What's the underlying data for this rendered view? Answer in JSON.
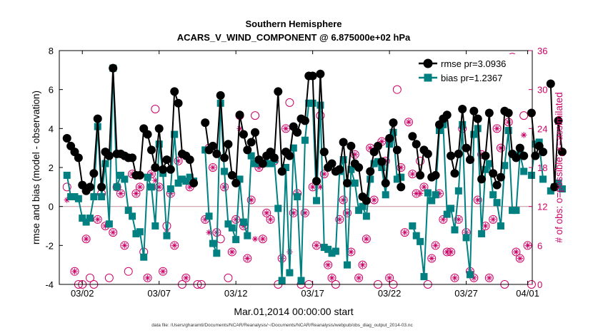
{
  "chart_data": {
    "type": "line",
    "title_line1": "Southern Hemisphere",
    "title_line2": "ACARS_V_WIND_COMPONENT @ 6.875000e+02 hPa",
    "xlabel": "Mar.01,2014 00:00:00 start",
    "ylabel_left": "rmse and bias (model - observation)",
    "ylabel_right": "# of obs: o=possible; ×=assimilated",
    "footnote": "data file: /Users/gharamti/Documents/NCAR/Reanalysis/~/Documents/NCAR/Reanalysis/webpub/obs_diag_output_2014-03.nc",
    "xlim": [
      0.5,
      31.3
    ],
    "ylim_left": [
      -4,
      8
    ],
    "ylim_right": [
      0,
      36
    ],
    "x_ticks": [
      {
        "value": 2,
        "label": "03/02"
      },
      {
        "value": 7,
        "label": "03/07"
      },
      {
        "value": 12,
        "label": "03/12"
      },
      {
        "value": 17,
        "label": "03/17"
      },
      {
        "value": 22,
        "label": "03/22"
      },
      {
        "value": 27,
        "label": "03/27"
      },
      {
        "value": 31,
        "label": "04/01"
      }
    ],
    "y_ticks_left": [
      -4,
      -2,
      0,
      2,
      4,
      6,
      8
    ],
    "y_ticks_right": [
      0,
      6,
      12,
      18,
      24,
      30,
      36
    ],
    "colors": {
      "rmse": "#000000",
      "bias": "#008080",
      "obs": "#cc0066",
      "zero_line": "#c8a0a8"
    },
    "series": [
      {
        "name": "rmse pr=3.0936",
        "values": [
          3.5,
          3.1,
          2.8,
          2.5,
          1.1,
          0.8,
          1.0,
          1.7,
          4.5,
          1.0,
          2.8,
          2.6,
          7.1,
          2.7,
          2.7,
          2.6,
          2.5,
          2.5,
          1.6,
          1.6,
          4.0,
          3.7,
          2.9,
          2.0,
          4.0,
          1.9,
          2.4,
          1.9,
          5.9,
          5.3,
          2.7,
          2.6,
          2.4,
          1.2,
          null,
          null,
          4.3,
          2.9,
          3.1,
          2.7,
          5.7,
          2.5,
          3.2,
          1.6,
          1.2,
          4.7,
          3.7,
          2.9,
          3.3,
          3.8,
          2.4,
          2.2,
          2.6,
          2.8,
          2.5,
          5.9,
          1.8,
          2.8,
          2.6,
          4.1,
          3.8,
          4.5,
          4.4,
          6.7,
          6.7,
          1.3,
          6.8,
          2.8,
          2.0,
          2.2,
          1.8,
          1.9,
          3.3,
          1.2,
          3.1,
          2.2,
          2.0,
          0.5,
          0.3,
          1.8,
          2.8,
          3.1,
          2.3,
          1.2,
          3.5,
          4.3,
          2.9,
          1.0,
          null,
          null,
          3.6,
          3.2,
          1.6,
          2.9,
          2.7,
          1.5,
          1.6,
          4.2,
          4.5,
          4.7,
          2.6,
          1.7,
          2.7,
          5.0,
          3.0,
          2.4,
          4.9,
          4.5,
          1.4,
          2.6,
          4.8,
          1.7,
          1.1,
          1.5,
          4.9,
          4.8,
          2.7,
          2.5,
          3.0,
          2.6,
          null,
          4.8,
          2.6,
          3.1,
          2.8,
          null,
          6.3,
          1.0,
          4.4,
          2.8
        ],
        "x_start": 1.0,
        "x_step": 0.25
      },
      {
        "name": "bias pr=1.2367",
        "values": [
          1.6,
          0.5,
          0.5,
          0.4,
          -0.6,
          -0.8,
          -0.6,
          0.5,
          4.1,
          0.5,
          2.2,
          -0.9,
          7.1,
          1.0,
          1.6,
          1.4,
          -0.2,
          -0.5,
          -1.4,
          -1.3,
          -2.6,
          1.5,
          1.0,
          -1.0,
          3.2,
          1.7,
          -1.5,
          0.9,
          3.7,
          1.2,
          1.4,
          1.3,
          1.5,
          1.3,
          null,
          null,
          2.9,
          -0.5,
          -1.9,
          -2.4,
          5.3,
          1.8,
          -0.9,
          -1.1,
          -1.7,
          1.4,
          -0.8,
          -1.5,
          2.6,
          2.2,
          2.3,
          2.2,
          2.2,
          2.2,
          2.4,
          -0.1,
          -3.8,
          2.0,
          -3.4,
          3.0,
          0.5,
          -3.8,
          3.4,
          5.3,
          5.3,
          0.3,
          5.2,
          -2.1,
          -2.2,
          -2.4,
          -2.3,
          1.8,
          2.4,
          -3.0,
          1.9,
          1.2,
          -0.2,
          0.0,
          -0.5,
          1.4,
          2.2,
          2.3,
          2.0,
          0.6,
          3.2,
          3.8,
          1.4,
          1.5,
          null,
          null,
          -1.0,
          -1.5,
          -1.8,
          -3.6,
          0.7,
          0.3,
          0.6,
          3.9,
          4.2,
          -0.4,
          -0.1,
          -1.2,
          0.8,
          4.2,
          -1.6,
          -3.5,
          3.7,
          4.0,
          -1.4,
          1.9,
          2.2,
          0.6,
          0.2,
          -1.0,
          2.1,
          3.9,
          -0.2,
          -0.2,
          2.7,
          1.8,
          null,
          1.6,
          3.2,
          3.3,
          1.4,
          null,
          0.8,
          1.0,
          1.2,
          0.9
        ]
      }
    ],
    "obs_possible": [
      [
        1.0,
        15.0
      ],
      [
        1.5,
        2.0
      ],
      [
        1.75,
        0.0
      ],
      [
        2.0,
        0.0
      ],
      [
        2.25,
        7.0
      ],
      [
        2.5,
        1.0
      ],
      [
        2.75,
        0.0
      ],
      [
        3.0,
        10.0
      ],
      [
        3.25,
        14.0
      ],
      [
        3.5,
        9.0
      ],
      [
        3.75,
        1.0
      ],
      [
        4.0,
        8.0
      ],
      [
        4.25,
        15.0
      ],
      [
        4.5,
        14.0
      ],
      [
        4.75,
        6.0
      ],
      [
        5.0,
        2.0
      ],
      [
        5.25,
        17.0
      ],
      [
        5.5,
        14.0
      ],
      [
        5.75,
        15.0
      ],
      [
        6.0,
        5.0
      ],
      [
        6.25,
        1.0
      ],
      [
        6.5,
        17.0
      ],
      [
        6.75,
        27.0
      ],
      [
        7.0,
        15.0
      ],
      [
        7.25,
        2.0
      ],
      [
        7.5,
        9.0
      ],
      [
        7.75,
        14.0
      ],
      [
        8.0,
        6.0
      ],
      [
        8.25,
        19.0
      ],
      [
        8.5,
        0.0
      ],
      [
        8.75,
        1.0
      ],
      [
        9.0,
        15.0
      ],
      [
        9.5,
        0.0
      ],
      [
        9.75,
        0.0
      ],
      [
        10.0,
        10.0
      ],
      [
        10.25,
        21.0
      ],
      [
        10.5,
        18.0
      ],
      [
        10.75,
        8.0
      ],
      [
        11.0,
        7.0
      ],
      [
        11.25,
        15.0
      ],
      [
        11.5,
        1.0
      ],
      [
        11.75,
        5.0
      ],
      [
        12.0,
        10.0
      ],
      [
        12.25,
        26.0
      ],
      [
        12.5,
        9.0
      ],
      [
        12.75,
        4.0
      ],
      [
        13.0,
        13.0
      ],
      [
        13.25,
        26.0
      ],
      [
        13.5,
        18.0
      ],
      [
        13.75,
        7.0
      ],
      [
        14.0,
        11.0
      ],
      [
        14.25,
        10.0
      ],
      [
        14.5,
        19.0
      ],
      [
        14.75,
        0.0
      ],
      [
        15.0,
        4.0
      ],
      [
        15.25,
        24.0
      ],
      [
        15.5,
        28.0
      ],
      [
        15.75,
        11.0
      ],
      [
        16.0,
        14.0
      ],
      [
        16.25,
        0.0
      ],
      [
        16.5,
        11.0
      ],
      [
        16.75,
        0.0
      ],
      [
        17.0,
        15.0
      ],
      [
        17.25,
        6.0
      ],
      [
        17.5,
        26.0
      ],
      [
        17.75,
        17.0
      ],
      [
        18.0,
        3.0
      ],
      [
        18.25,
        1.0
      ],
      [
        18.5,
        0.0
      ],
      [
        18.75,
        10.0
      ],
      [
        19.0,
        13.0
      ],
      [
        19.25,
        11.0
      ],
      [
        19.5,
        5.0
      ],
      [
        19.75,
        20.0
      ],
      [
        20.0,
        1.0
      ],
      [
        20.25,
        3.0
      ],
      [
        20.5,
        7.0
      ],
      [
        20.75,
        21.0
      ],
      [
        21.0,
        13.0
      ],
      [
        21.25,
        0.0
      ],
      [
        21.5,
        22.0
      ],
      [
        21.75,
        19.0
      ],
      [
        22.0,
        1.0
      ],
      [
        22.25,
        0.0
      ],
      [
        22.5,
        30.0
      ],
      [
        22.75,
        18.0
      ],
      [
        23.0,
        8.0
      ],
      [
        23.25,
        25.0
      ],
      [
        23.5,
        17.0
      ],
      [
        23.75,
        14.0
      ],
      [
        24.0,
        19.0
      ],
      [
        24.25,
        15.0
      ],
      [
        24.5,
        0.0
      ],
      [
        24.75,
        4.0
      ],
      [
        25.0,
        6.0
      ],
      [
        25.25,
        14.0
      ],
      [
        25.5,
        10.0
      ],
      [
        25.75,
        5.0
      ],
      [
        26.0,
        5.0
      ],
      [
        26.25,
        1.0
      ],
      [
        26.5,
        10.0
      ],
      [
        26.75,
        24.0
      ],
      [
        27.0,
        8.0
      ],
      [
        27.25,
        2.0
      ],
      [
        27.5,
        1.0
      ],
      [
        27.75,
        13.0
      ],
      [
        28.0,
        20.0
      ],
      [
        28.25,
        9.0
      ],
      [
        28.5,
        1.0
      ],
      [
        28.75,
        10.0
      ],
      [
        29.0,
        24.0
      ],
      [
        29.25,
        21.0
      ],
      [
        29.5,
        0.0
      ],
      [
        29.75,
        25.0
      ],
      [
        30.0,
        35.0
      ],
      [
        30.25,
        5.0
      ],
      [
        30.5,
        4.0
      ],
      [
        30.75,
        26.0
      ],
      [
        31.0,
        6.0
      ],
      [
        31.25,
        0.0
      ]
    ],
    "obs_assimilated": [
      [
        1.0,
        13.0
      ],
      [
        1.5,
        2.0
      ],
      [
        2.25,
        7.0
      ],
      [
        3.0,
        10.0
      ],
      [
        3.5,
        9.0
      ],
      [
        4.0,
        8.0
      ],
      [
        4.25,
        15.0
      ],
      [
        4.5,
        14.0
      ],
      [
        4.75,
        6.0
      ],
      [
        5.25,
        17.0
      ],
      [
        5.5,
        14.0
      ],
      [
        5.75,
        15.0
      ],
      [
        6.25,
        1.0
      ],
      [
        6.5,
        17.0
      ],
      [
        6.75,
        16.0
      ],
      [
        7.0,
        15.0
      ],
      [
        7.25,
        2.0
      ],
      [
        7.5,
        8.0
      ],
      [
        7.75,
        14.0
      ],
      [
        8.0,
        6.0
      ],
      [
        8.25,
        19.0
      ],
      [
        8.75,
        1.0
      ],
      [
        9.0,
        15.0
      ],
      [
        10.0,
        10.0
      ],
      [
        10.25,
        8.0
      ],
      [
        10.5,
        18.0
      ],
      [
        10.75,
        8.0
      ],
      [
        11.25,
        15.0
      ],
      [
        11.75,
        5.0
      ],
      [
        12.0,
        10.0
      ],
      [
        12.25,
        24.0
      ],
      [
        12.5,
        9.0
      ],
      [
        12.75,
        4.0
      ],
      [
        13.0,
        13.0
      ],
      [
        13.25,
        7.0
      ],
      [
        13.5,
        18.0
      ],
      [
        13.75,
        7.0
      ],
      [
        14.0,
        11.0
      ],
      [
        14.25,
        10.0
      ],
      [
        14.5,
        19.0
      ],
      [
        15.0,
        4.0
      ],
      [
        15.25,
        24.0
      ],
      [
        15.5,
        5.0
      ],
      [
        15.75,
        11.0
      ],
      [
        16.0,
        14.0
      ],
      [
        16.5,
        11.0
      ],
      [
        17.0,
        15.0
      ],
      [
        17.25,
        6.0
      ],
      [
        17.5,
        15.0
      ],
      [
        17.75,
        17.0
      ],
      [
        18.0,
        3.0
      ],
      [
        18.25,
        1.0
      ],
      [
        18.75,
        10.0
      ],
      [
        19.0,
        13.0
      ],
      [
        19.25,
        11.0
      ],
      [
        19.5,
        5.0
      ],
      [
        19.75,
        20.0
      ],
      [
        20.0,
        1.0
      ],
      [
        20.25,
        3.0
      ],
      [
        20.5,
        7.0
      ],
      [
        20.75,
        21.0
      ],
      [
        21.0,
        13.0
      ],
      [
        21.5,
        22.0
      ],
      [
        21.75,
        19.0
      ],
      [
        22.0,
        1.0
      ],
      [
        22.75,
        18.0
      ],
      [
        23.0,
        8.0
      ],
      [
        23.25,
        25.0
      ],
      [
        23.5,
        17.0
      ],
      [
        23.75,
        14.0
      ],
      [
        24.0,
        14.0
      ],
      [
        24.25,
        15.0
      ],
      [
        24.75,
        4.0
      ],
      [
        25.0,
        6.0
      ],
      [
        25.25,
        14.0
      ],
      [
        25.5,
        10.0
      ],
      [
        25.75,
        5.0
      ],
      [
        26.0,
        5.0
      ],
      [
        26.25,
        1.0
      ],
      [
        26.5,
        10.0
      ],
      [
        26.75,
        24.0
      ],
      [
        27.0,
        8.0
      ],
      [
        27.25,
        2.0
      ],
      [
        27.5,
        1.0
      ],
      [
        27.75,
        13.0
      ],
      [
        28.0,
        20.0
      ],
      [
        28.25,
        9.0
      ],
      [
        28.5,
        1.0
      ],
      [
        28.75,
        10.0
      ],
      [
        29.0,
        24.0
      ],
      [
        29.25,
        21.0
      ],
      [
        29.75,
        25.0
      ],
      [
        30.0,
        32.0
      ],
      [
        30.25,
        5.0
      ],
      [
        30.5,
        4.0
      ],
      [
        30.75,
        23.0
      ],
      [
        31.0,
        6.0
      ]
    ],
    "legend": {
      "position": "top-right",
      "entries": [
        "rmse pr=3.0936",
        "bias pr=1.2367"
      ]
    },
    "grid": false
  }
}
